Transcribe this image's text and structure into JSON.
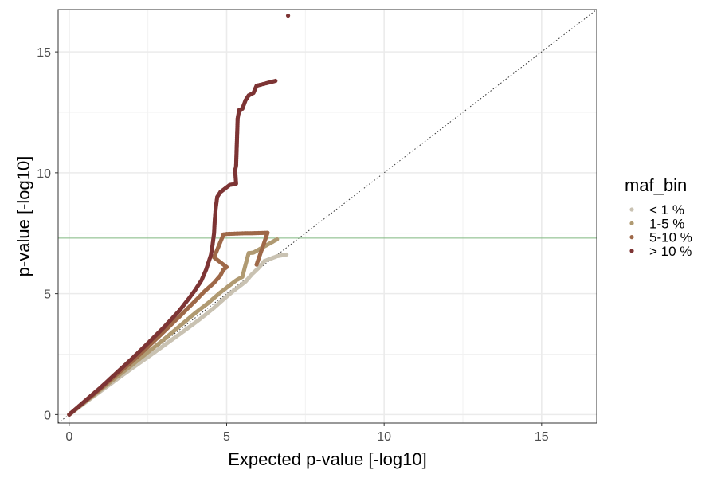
{
  "chart_data": {
    "type": "scatter",
    "title": "",
    "xlabel": "Expected p-value [-log10]",
    "ylabel": "p-value [-log10]",
    "xlim": [
      -0.35,
      16.75
    ],
    "ylim": [
      -0.35,
      16.75
    ],
    "x_ticks": [
      0,
      5,
      10,
      15
    ],
    "y_ticks": [
      0,
      5,
      10,
      15
    ],
    "x_tick_labels": [
      "0",
      "5",
      "10",
      "15"
    ],
    "y_tick_labels": [
      "0",
      "5",
      "10",
      "15"
    ],
    "grid": true,
    "legend_position": "right",
    "legend_title": "maf_bin",
    "reference_line": {
      "type": "diagonal",
      "style": "dotted",
      "color": "#333333"
    },
    "threshold_line": {
      "y": 7.3,
      "color": "#7fb87f"
    },
    "series": [
      {
        "name": "< 1 %",
        "color": "#c9c2b2",
        "points": [
          [
            0.0,
            0.0
          ],
          [
            0.5,
            0.49
          ],
          [
            1.0,
            0.97
          ],
          [
            1.5,
            1.45
          ],
          [
            2.0,
            1.92
          ],
          [
            2.5,
            2.38
          ],
          [
            3.0,
            2.85
          ],
          [
            3.5,
            3.32
          ],
          [
            4.0,
            3.8
          ],
          [
            4.3,
            4.1
          ],
          [
            4.6,
            4.42
          ],
          [
            4.8,
            4.65
          ],
          [
            5.0,
            4.88
          ],
          [
            5.2,
            5.1
          ],
          [
            5.4,
            5.3
          ],
          [
            5.6,
            5.5
          ],
          [
            5.8,
            5.8
          ],
          [
            6.0,
            6.05
          ],
          [
            6.2,
            6.35
          ],
          [
            6.6,
            6.55
          ],
          [
            6.9,
            6.62
          ]
        ]
      },
      {
        "name": "1-5 %",
        "color": "#b09a72",
        "points": [
          [
            0.0,
            0.0
          ],
          [
            0.5,
            0.52
          ],
          [
            1.0,
            1.03
          ],
          [
            1.5,
            1.55
          ],
          [
            2.0,
            2.06
          ],
          [
            2.5,
            2.58
          ],
          [
            3.0,
            3.1
          ],
          [
            3.5,
            3.65
          ],
          [
            4.0,
            4.2
          ],
          [
            4.4,
            4.6
          ],
          [
            4.8,
            5.05
          ],
          [
            5.1,
            5.35
          ],
          [
            5.3,
            5.55
          ],
          [
            5.5,
            5.7
          ],
          [
            5.6,
            6.2
          ],
          [
            5.7,
            6.68
          ],
          [
            5.85,
            6.7
          ],
          [
            6.6,
            7.25
          ]
        ]
      },
      {
        "name": "5-10 %",
        "color": "#9e6848",
        "points": [
          [
            0.0,
            0.0
          ],
          [
            0.5,
            0.54
          ],
          [
            1.0,
            1.08
          ],
          [
            1.5,
            1.65
          ],
          [
            2.0,
            2.2
          ],
          [
            2.5,
            2.8
          ],
          [
            3.0,
            3.42
          ],
          [
            3.5,
            4.05
          ],
          [
            4.0,
            4.7
          ],
          [
            4.3,
            5.1
          ],
          [
            4.6,
            5.45
          ],
          [
            4.8,
            5.75
          ],
          [
            4.9,
            6.0
          ],
          [
            5.0,
            6.1
          ],
          [
            4.6,
            6.5
          ],
          [
            4.9,
            7.45
          ],
          [
            5.0,
            7.47
          ],
          [
            5.2,
            7.48
          ],
          [
            5.4,
            7.49
          ],
          [
            5.6,
            7.5
          ],
          [
            5.8,
            7.5
          ],
          [
            6.3,
            7.52
          ],
          [
            5.95,
            6.2
          ]
        ]
      },
      {
        "name": "> 10 %",
        "color": "#7d3434",
        "points": [
          [
            0.0,
            0.0
          ],
          [
            0.5,
            0.56
          ],
          [
            1.0,
            1.12
          ],
          [
            1.5,
            1.72
          ],
          [
            2.0,
            2.32
          ],
          [
            2.5,
            2.95
          ],
          [
            3.0,
            3.6
          ],
          [
            3.5,
            4.3
          ],
          [
            3.8,
            4.8
          ],
          [
            4.0,
            5.15
          ],
          [
            4.2,
            5.55
          ],
          [
            4.35,
            6.0
          ],
          [
            4.5,
            6.6
          ],
          [
            4.55,
            7.0
          ],
          [
            4.6,
            7.5
          ],
          [
            4.62,
            8.0
          ],
          [
            4.65,
            8.5
          ],
          [
            4.7,
            9.0
          ],
          [
            4.8,
            9.2
          ],
          [
            4.9,
            9.3
          ],
          [
            5.0,
            9.4
          ],
          [
            5.1,
            9.5
          ],
          [
            5.2,
            9.52
          ],
          [
            5.3,
            9.55
          ],
          [
            5.27,
            10.1
          ],
          [
            5.3,
            10.3
          ],
          [
            5.35,
            12.25
          ],
          [
            5.4,
            12.6
          ],
          [
            5.5,
            12.65
          ],
          [
            5.6,
            13.0
          ],
          [
            5.7,
            13.2
          ],
          [
            5.85,
            13.3
          ],
          [
            5.95,
            13.6
          ],
          [
            6.1,
            13.65
          ],
          [
            6.25,
            13.7
          ],
          [
            6.55,
            13.8
          ],
          [
            6.95,
            16.5
          ]
        ]
      }
    ]
  }
}
